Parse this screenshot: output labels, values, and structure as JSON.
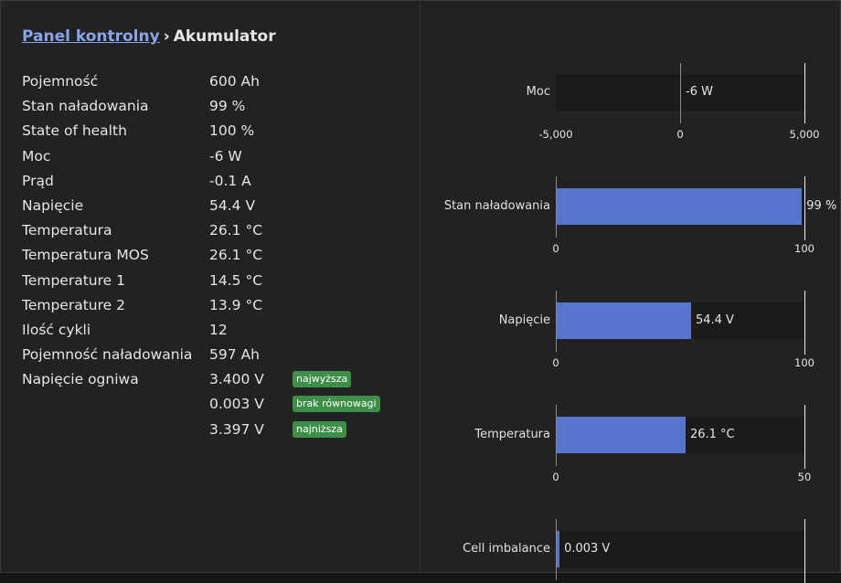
{
  "breadcrumb": {
    "link": "Panel kontrolny",
    "separator": "›",
    "current": "Akumulator"
  },
  "stats": [
    {
      "label": "Pojemność",
      "value": "600 Ah"
    },
    {
      "label": "Stan naładowania",
      "value": "99 %"
    },
    {
      "label": "State of health",
      "value": "100 %"
    },
    {
      "label": "Moc",
      "value": "-6 W"
    },
    {
      "label": "Prąd",
      "value": "-0.1 A"
    },
    {
      "label": "Napięcie",
      "value": "54.4 V"
    },
    {
      "label": "Temperatura",
      "value": "26.1 °C"
    },
    {
      "label": "Temperatura MOS",
      "value": "26.1 °C"
    },
    {
      "label": "Temperature 1",
      "value": "14.5 °C"
    },
    {
      "label": "Temperature 2",
      "value": "13.9 °C"
    },
    {
      "label": "Ilość cykli",
      "value": "12"
    },
    {
      "label": "Pojemność naładowania",
      "value": "597 Ah"
    },
    {
      "label": "Napięcie ogniwa",
      "value": "3.400 V",
      "badge": "najwyższa"
    },
    {
      "label": "",
      "value": "0.003 V",
      "badge": "brak równowagi"
    },
    {
      "label": "",
      "value": "3.397 V",
      "badge": "najniższa"
    }
  ],
  "colors": {
    "bar": "#5874cc",
    "badge": "#3d8f48",
    "link": "#8aa4ec"
  },
  "chart_data": [
    {
      "type": "bar",
      "label": "Moc",
      "value": -6,
      "value_label": "-6 W",
      "min": -5000,
      "max": 5000,
      "ticks": [
        "-5,000",
        "0",
        "5,000"
      ],
      "tick_values": [
        -5000,
        0,
        5000
      ]
    },
    {
      "type": "bar",
      "label": "Stan naładowania",
      "value": 99,
      "value_label": "99 %",
      "min": 0,
      "max": 100,
      "ticks": [
        "0",
        "100"
      ],
      "tick_values": [
        0,
        100
      ]
    },
    {
      "type": "bar",
      "label": "Napięcie",
      "value": 54.4,
      "value_label": "54.4 V",
      "min": 0,
      "max": 100,
      "ticks": [
        "0",
        "100"
      ],
      "tick_values": [
        0,
        100
      ]
    },
    {
      "type": "bar",
      "label": "Temperatura",
      "value": 26.1,
      "value_label": "26.1 °C",
      "min": 0,
      "max": 50,
      "ticks": [
        "0",
        "50"
      ],
      "tick_values": [
        0,
        50
      ]
    },
    {
      "type": "bar",
      "label": "Cell imbalance",
      "value": 0.003,
      "value_label": "0.003 V",
      "min": 0,
      "max": 0.2,
      "ticks": [],
      "tick_values": []
    }
  ]
}
